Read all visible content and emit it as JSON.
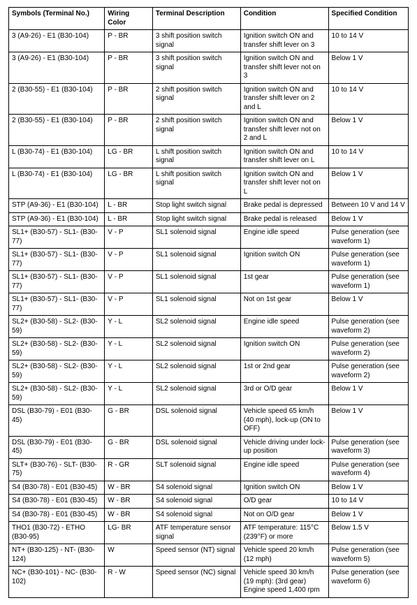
{
  "table": {
    "headers": [
      "Symbols (Terminal No.)",
      "Wiring Color",
      "Terminal Description",
      "Condition",
      "Specified Condition"
    ],
    "rows": [
      [
        "3 (A9-26) - E1 (B30-104)",
        "P - BR",
        "3 shift position switch signal",
        "Ignition switch ON and transfer shift lever on 3",
        "10 to 14 V"
      ],
      [
        "3 (A9-26) - E1 (B30-104)",
        "P - BR",
        "3 shift position switch signal",
        "Ignition switch ON and transfer shift lever not on 3",
        "Below 1 V"
      ],
      [
        "2 (B30-55) - E1 (B30-104)",
        "P - BR",
        "2 shift position switch signal",
        "Ignition switch ON and transfer shift lever on 2 and L",
        "10 to 14 V"
      ],
      [
        "2 (B30-55) - E1 (B30-104)",
        "P - BR",
        "2 shift position switch signal",
        "Ignition switch ON and transfer shift lever not on 2 and L",
        "Below 1 V"
      ],
      [
        "L (B30-74) - E1 (B30-104)",
        "LG - BR",
        "L shift position switch signal",
        "Ignition switch ON and transfer shift lever on L",
        "10 to 14 V"
      ],
      [
        "L (B30-74) - E1 (B30-104)",
        "LG - BR",
        "L shift position switch signal",
        "Ignition switch ON and transfer shift lever not on L",
        "Below 1 V"
      ],
      [
        "STP (A9-36) - E1 (B30-104)",
        "L - BR",
        "Stop light switch signal",
        "Brake pedal is depressed",
        "Between 10 V and 14 V"
      ],
      [
        "STP (A9-36) - E1 (B30-104)",
        "L - BR",
        "Stop light switch signal",
        "Brake pedal is released",
        "Below 1 V"
      ],
      [
        "SL1+ (B30-57) - SL1- (B30-77)",
        "V - P",
        "SL1 solenoid signal",
        "Engine idle speed",
        "Pulse generation (see waveform 1)"
      ],
      [
        "SL1+ (B30-57) - SL1- (B30-77)",
        "V - P",
        "SL1 solenoid signal",
        "Ignition switch ON",
        "Pulse generation (see waveform 1)"
      ],
      [
        "SL1+ (B30-57) - SL1- (B30-77)",
        "V - P",
        "SL1 solenoid signal",
        "1st gear",
        "Pulse generation (see waveform 1)"
      ],
      [
        "SL1+ (B30-57) - SL1- (B30-77)",
        "V - P",
        "SL1 solenoid signal",
        "Not on 1st gear",
        "Below 1 V"
      ],
      [
        "SL2+ (B30-58) - SL2- (B30-59)",
        "Y - L",
        "SL2 solenoid signal",
        "Engine idle speed",
        "Pulse generation (see waveform 2)"
      ],
      [
        "SL2+ (B30-58) - SL2- (B30-59)",
        "Y - L",
        "SL2 solenoid signal",
        "Ignition switch ON",
        "Pulse generation (see waveform 2)"
      ],
      [
        "SL2+ (B30-58) - SL2- (B30-59)",
        "Y - L",
        "SL2 solenoid signal",
        "1st or 2nd gear",
        "Pulse generation (see waveform 2)"
      ],
      [
        "SL2+ (B30-58) - SL2- (B30-59)",
        "Y - L",
        "SL2 solenoid signal",
        "3rd or O/D gear",
        "Below 1 V"
      ],
      [
        "DSL (B30-79) - E01 (B30-45)",
        "G - BR",
        "DSL solenoid signal",
        "Vehicle speed 65 km/h (40 mph), lock-up (ON to OFF)",
        "Below 1 V"
      ],
      [
        "DSL (B30-79) - E01 (B30-45)",
        "G - BR",
        "DSL solenoid signal",
        "Vehicle driving under lock-up position",
        "Pulse generation (see waveform 3)"
      ],
      [
        "SLT+ (B30-76) - SLT- (B30-75)",
        "R - GR",
        "SLT solenoid signal",
        "Engine idle speed",
        "Pulse generation (see waveform 4)"
      ],
      [
        "S4 (B30-78) - E01 (B30-45)",
        "W - BR",
        "S4 solenoid signal",
        "Ignition switch ON",
        "Below 1 V"
      ],
      [
        "S4 (B30-78) - E01 (B30-45)",
        "W - BR",
        "S4 solenoid signal",
        "O/D gear",
        "10 to 14 V"
      ],
      [
        "S4 (B30-78) - E01 (B30-45)",
        "W - BR",
        "S4 solenoid signal",
        "Not on O/D gear",
        "Below 1 V"
      ],
      [
        "THO1 (B30-72) - ETHO (B30-95)",
        "LG- BR",
        "ATF temperature sensor signal",
        "ATF temperature: 115°C (239°F) or more",
        "Below 1.5 V"
      ],
      [
        "NT+ (B30-125) - NT- (B30-124)",
        "W",
        "Speed sensor (NT) signal",
        "Vehicle speed 20 km/h (12 mph)",
        "Pulse generation (see waveform 5)"
      ],
      [
        "NC+ (B30-101) - NC- (B30-102)",
        "R - W",
        "Speed sensor (NC) signal",
        "Vehicle speed 30 km/h (19 mph): (3rd gear) Engine speed 1,400 rpm",
        "Pulse generation (see waveform 6)"
      ]
    ]
  }
}
